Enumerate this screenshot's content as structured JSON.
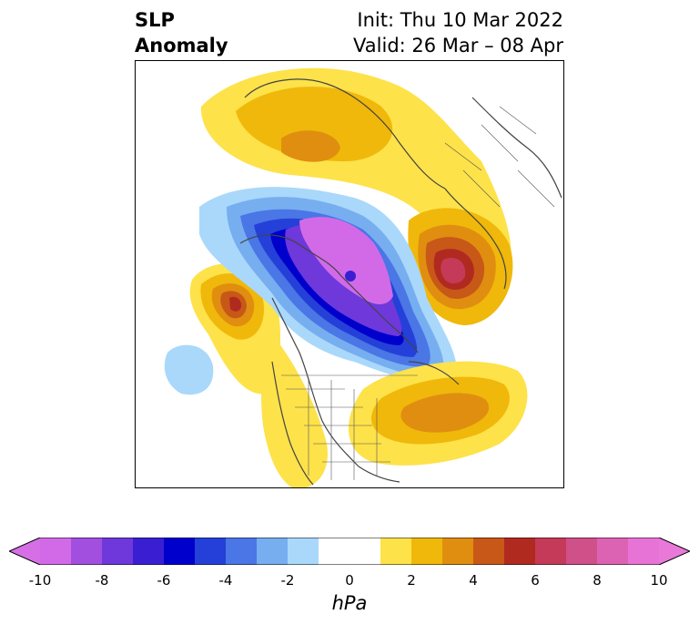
{
  "title": {
    "line1": "SLP",
    "line2": "Anomaly"
  },
  "subtitle": {
    "init": "Init: Thu 10 Mar 2022",
    "valid": "Valid: 26 Mar – 08 Apr"
  },
  "map": {
    "variable": "SLP Anomaly",
    "projection": "polar stereographic (North America)",
    "features": [
      {
        "name": "arctic-low",
        "sign": "negative",
        "value_hPa": -10
      },
      {
        "name": "north-pacific-high",
        "sign": "positive",
        "value_hPa": 6
      },
      {
        "name": "scandinavia-high",
        "sign": "positive",
        "value_hPa": 8
      },
      {
        "name": "eurasia-high",
        "sign": "positive",
        "value_hPa": 4
      },
      {
        "name": "west-atlantic-high",
        "sign": "positive",
        "value_hPa": 4
      },
      {
        "name": "subtropical-pacific-low",
        "sign": "negative",
        "value_hPa": -2
      }
    ]
  },
  "colorbar": {
    "unit": "hPa",
    "ticks": [
      "-10",
      "-8",
      "-6",
      "-4",
      "-2",
      "0",
      "2",
      "4",
      "6",
      "8",
      "10"
    ],
    "min": -10,
    "max": 10,
    "colors": [
      "#d26ae8",
      "#a24fe0",
      "#6e38db",
      "#3a1fd2",
      "#0000cc",
      "#2540d8",
      "#4a76e6",
      "#76aef0",
      "#a9d8fb",
      "#ffffff",
      "#ffffff",
      "#fde24a",
      "#f0b80a",
      "#e08e10",
      "#c85818",
      "#b02a20",
      "#c43a58",
      "#d0508a",
      "#dc62b4",
      "#e873d6"
    ],
    "under_color": "#d66fe6",
    "over_color": "#e879d8"
  }
}
